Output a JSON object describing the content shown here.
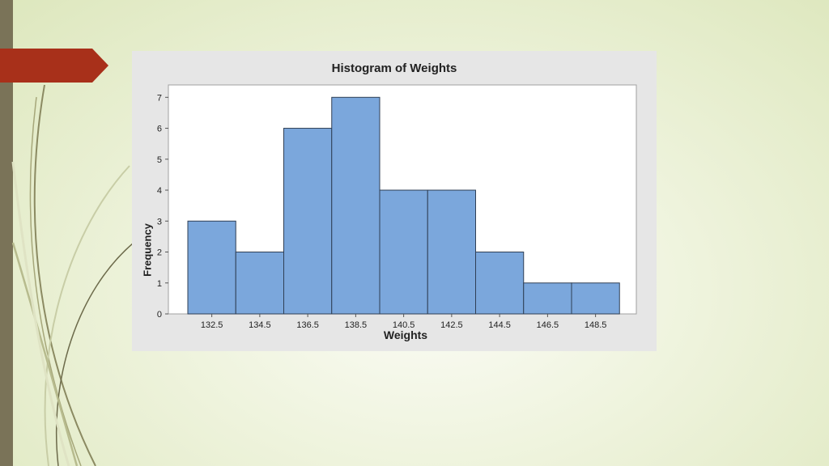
{
  "slide": {
    "colors": {
      "background": "#eef3dc",
      "left_bar": "#7a7358",
      "tab_arrow": "#a8301a",
      "panel": "#e6e6e6"
    }
  },
  "chart_data": {
    "type": "bar",
    "title": "Histogram of Weights",
    "xlabel": "Weights",
    "ylabel": "Frequency",
    "categories": [
      "132.5",
      "134.5",
      "136.5",
      "138.5",
      "140.5",
      "142.5",
      "144.5",
      "146.5",
      "148.5"
    ],
    "values": [
      3,
      2,
      6,
      7,
      4,
      4,
      2,
      1,
      1
    ],
    "yticks": [
      "0",
      "1",
      "2",
      "3",
      "4",
      "5",
      "6",
      "7"
    ],
    "ylim": [
      0,
      7.4
    ],
    "grid": false,
    "colors": {
      "bar_fill": "#7ba7dc",
      "bar_stroke": "#2f3f55",
      "plot_bg": "#ffffff"
    }
  }
}
